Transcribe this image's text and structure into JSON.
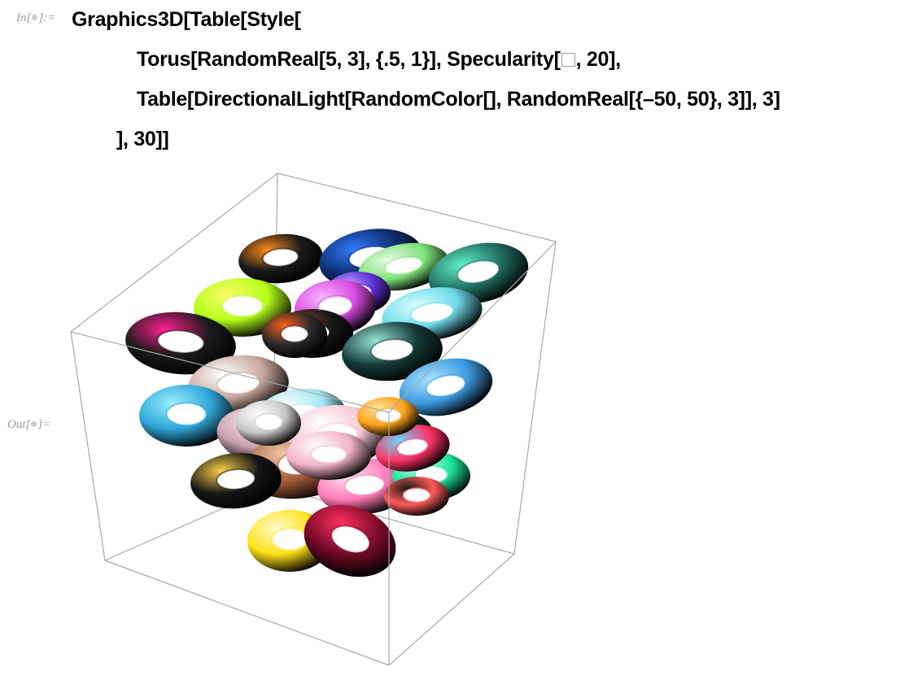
{
  "input_cell": {
    "label_prefix": "In[",
    "label_suffix": "]:=",
    "lines": [
      {
        "parts": [
          {
            "text": "Graphics3D[Table[Style["
          }
        ]
      },
      {
        "parts": [
          {
            "text": "Torus[RandomReal[5, 3], {.5, 1}], Specularity["
          },
          {
            "swatch": "white-square"
          },
          {
            "text": ", 20],"
          }
        ]
      },
      {
        "parts": [
          {
            "text": "Table[DirectionalLight[RandomColor[], RandomReal[{–50, 50}, 3]], 3]"
          }
        ]
      },
      {
        "parts": [
          {
            "text": "], 30]]"
          }
        ]
      }
    ]
  },
  "output_cell": {
    "label_prefix": "Out[",
    "label_suffix": "]="
  },
  "graphic": {
    "type": "3D bounding box with 30 randomly placed and colored tori",
    "box_edge_color": "#a8a8a8",
    "tori": [
      {
        "outer": "#1a1a1a",
        "highlight": "#ff8c1a"
      },
      {
        "outer": "#0d2c6b",
        "highlight": "#2f7bff"
      },
      {
        "outer": "#7de37a",
        "highlight": "#e9fbe7"
      },
      {
        "outer": "#1f6b5f",
        "highlight": "#5ff2c9"
      },
      {
        "outer": "#b5ff1a",
        "highlight": "#fbfb6a"
      },
      {
        "outer": "#d94ae0",
        "highlight": "#f8b6ff"
      },
      {
        "outer": "#151515",
        "highlight": "#8a4a2a"
      },
      {
        "outer": "#6fdbe8",
        "highlight": "#d9fdff"
      },
      {
        "outer": "#1a1a1a",
        "highlight": "#ff1f8f"
      },
      {
        "outer": "#143a38",
        "highlight": "#9ae6d8"
      },
      {
        "outer": "#3b9be0",
        "highlight": "#a8e4ff"
      },
      {
        "outer": "#c8a79a",
        "highlight": "#ffffff"
      },
      {
        "outer": "#2ea7d8",
        "highlight": "#9bf0ff"
      },
      {
        "outer": "#9fe8f0",
        "highlight": "#ffffff"
      },
      {
        "outer": "#c9a0b0",
        "highlight": "#ffe9f3"
      },
      {
        "outer": "#0c2a1a",
        "highlight": "#30ff80"
      },
      {
        "outer": "#a35a35",
        "highlight": "#f2c7a5"
      },
      {
        "outer": "#f5c9d4",
        "highlight": "#ffffff"
      },
      {
        "outer": "#ff7ab8",
        "highlight": "#ffe3f1"
      },
      {
        "outer": "#1ce59c",
        "highlight": "#c6fff0"
      },
      {
        "outer": "#151515",
        "highlight": "#ffd24a"
      },
      {
        "outer": "#ff3366",
        "highlight": "#5fe0ff"
      },
      {
        "outer": "#ffe21a",
        "highlight": "#fffbd0"
      },
      {
        "outer": "#7a0a2a",
        "highlight": "#ff2f5f"
      },
      {
        "outer": "#f0b3c8",
        "highlight": "#ffffff"
      },
      {
        "outer": "#c9c9c9",
        "highlight": "#ffffff"
      },
      {
        "outer": "#ffa31a",
        "highlight": "#ffe2a0"
      },
      {
        "outer": "#5b2bd0",
        "highlight": "#b8a0ff"
      },
      {
        "outer": "#2a2a2a",
        "highlight": "#ff5f1a"
      },
      {
        "outer": "#ff5a5a",
        "highlight": "#1a1a1a"
      }
    ]
  }
}
